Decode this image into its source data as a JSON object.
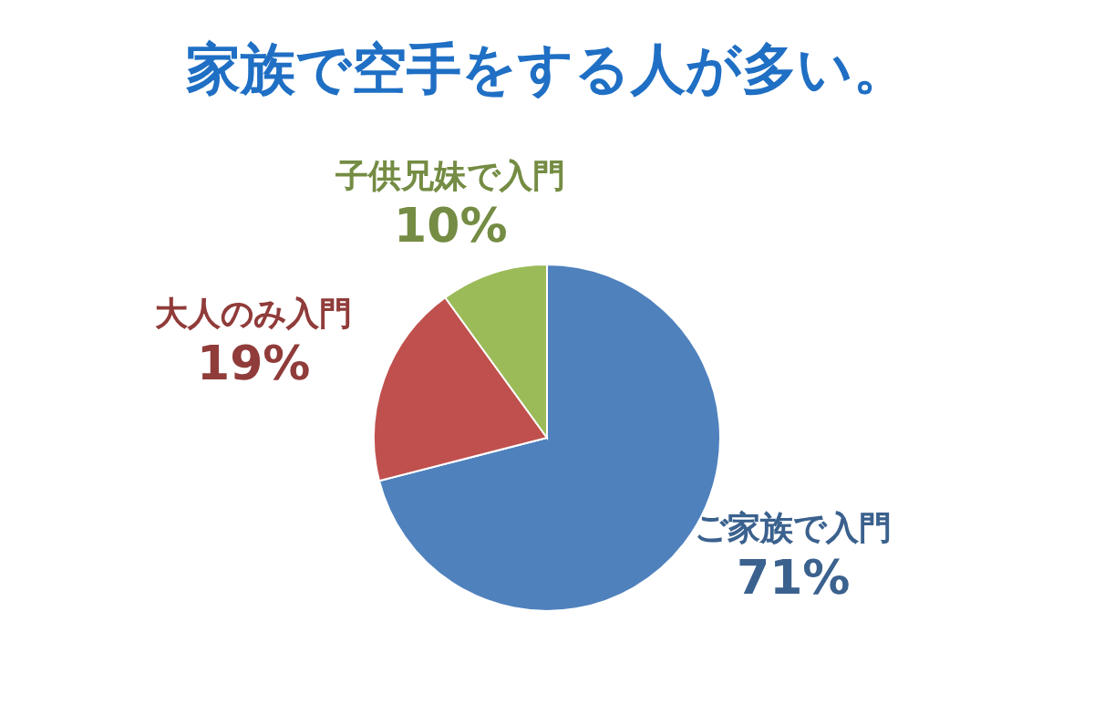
{
  "chart_data": {
    "type": "pie",
    "title": "家族で空手をする人が多い。",
    "categories": [
      "ご家族で入門",
      "大人のみ入門",
      "子供兄妹で入門"
    ],
    "values": [
      71,
      19,
      10
    ],
    "colors": [
      "#4f81bd",
      "#c0504d",
      "#9bbb59"
    ],
    "value_labels": [
      "71%",
      "19%",
      "10%"
    ]
  }
}
